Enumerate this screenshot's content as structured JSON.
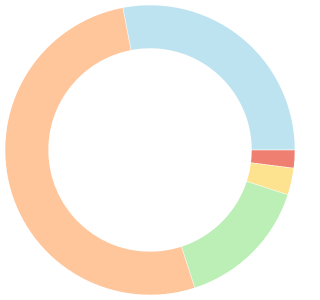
{
  "chart_data": {
    "type": "donut",
    "values": [
      28,
      2,
      3,
      15,
      52
    ],
    "colors": [
      "#bee3f0",
      "#ee7f71",
      "#fde38f",
      "#bcefb5",
      "#ffc59b"
    ],
    "start_angle": -10.8,
    "hole": 0.7
  }
}
